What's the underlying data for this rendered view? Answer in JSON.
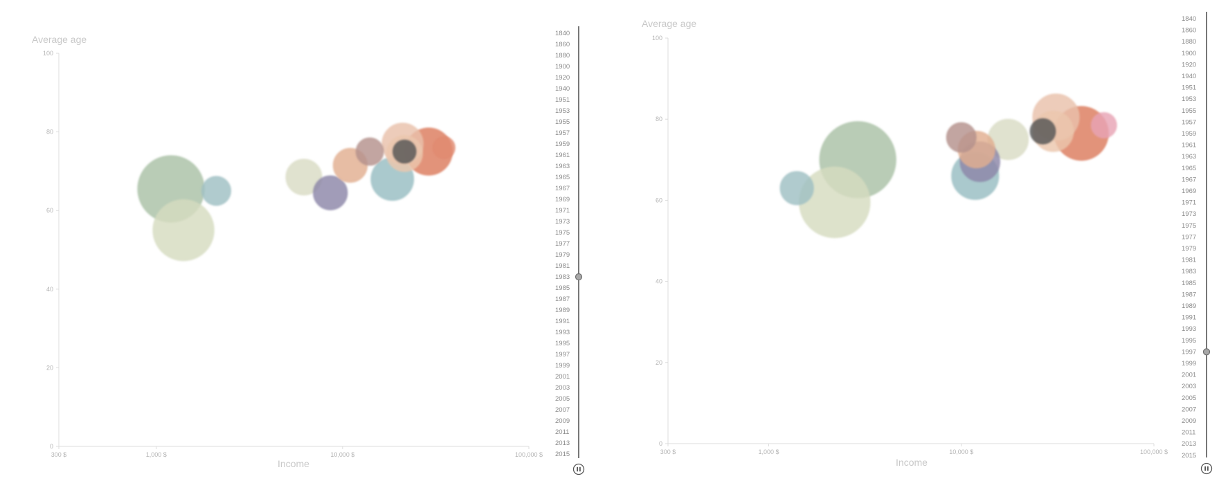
{
  "colors": {
    "axis": "#dcdcdc",
    "axis_title": "#c8c8c8",
    "tick": "#b4b4b4",
    "slider": "#555555"
  },
  "years": [
    "1840",
    "1860",
    "1880",
    "1900",
    "1920",
    "1940",
    "1951",
    "1953",
    "1955",
    "1957",
    "1959",
    "1961",
    "1963",
    "1965",
    "1967",
    "1969",
    "1971",
    "1973",
    "1975",
    "1977",
    "1979",
    "1981",
    "1983",
    "1985",
    "1987",
    "1989",
    "1991",
    "1993",
    "1995",
    "1997",
    "1999",
    "2001",
    "2003",
    "2005",
    "2007",
    "2009",
    "2011",
    "2013",
    "2015"
  ],
  "controls": {
    "pause_icon": "pause-icon",
    "slider_icon": "slider-handle"
  },
  "chart_data": [
    {
      "type": "scatter",
      "subtype": "bubble",
      "title": "",
      "xlabel": "Income",
      "ylabel": "Average age",
      "x_scale": "log",
      "xlim": [
        300,
        100000
      ],
      "ylim": [
        0,
        100
      ],
      "x_ticks": [
        300,
        1000,
        10000,
        100000
      ],
      "x_tick_labels": [
        "300 $",
        "1,000 $",
        "10,000 $",
        "100,000 $"
      ],
      "y_ticks": [
        0,
        20,
        40,
        60,
        80,
        100
      ],
      "y_tick_labels": [
        "0",
        "20",
        "40",
        "60",
        "80",
        "100"
      ],
      "current_year": "1983",
      "points": [
        {
          "x": 1200,
          "y": 65.5,
          "size": 1.0,
          "color": "#a9c1a6"
        },
        {
          "x": 1400,
          "y": 55,
          "size": 0.84,
          "color": "#d6dcc0"
        },
        {
          "x": 2100,
          "y": 65,
          "size": 0.19,
          "color": "#9fbfc3"
        },
        {
          "x": 6200,
          "y": 68.5,
          "size": 0.29,
          "color": "#d9dcc4"
        },
        {
          "x": 8600,
          "y": 64.5,
          "size": 0.26,
          "color": "#8c86a8"
        },
        {
          "x": 11000,
          "y": 71.5,
          "size": 0.26,
          "color": "#e2ae90"
        },
        {
          "x": 14000,
          "y": 75,
          "size": 0.17,
          "color": "#b4918c"
        },
        {
          "x": 18500,
          "y": 68,
          "size": 0.41,
          "color": "#97bdc2"
        },
        {
          "x": 21000,
          "y": 77,
          "size": 0.38,
          "color": "#e9c1ab"
        },
        {
          "x": 21500,
          "y": 75,
          "size": 0.12,
          "color": "#555555"
        },
        {
          "x": 21500,
          "y": 74.5,
          "size": 0.29,
          "color": "#ecc7ad"
        },
        {
          "x": 29000,
          "y": 75,
          "size": 0.5,
          "color": "#dc7b5d"
        },
        {
          "x": 35000,
          "y": 76,
          "size": 0.11,
          "color": "#e08a70"
        }
      ]
    },
    {
      "type": "scatter",
      "subtype": "bubble",
      "title": "",
      "xlabel": "Income",
      "ylabel": "Average age",
      "x_scale": "log",
      "xlim": [
        300,
        100000
      ],
      "ylim": [
        0,
        100
      ],
      "x_ticks": [
        300,
        1000,
        10000,
        100000
      ],
      "x_tick_labels": [
        "300 $",
        "1,000 $",
        "10,000 $",
        "100,000 $"
      ],
      "y_ticks": [
        0,
        20,
        40,
        60,
        80,
        100
      ],
      "y_tick_labels": [
        "0",
        "20",
        "40",
        "60",
        "80",
        "100"
      ],
      "current_year": "1997",
      "points": [
        {
          "x": 1400,
          "y": 63,
          "size": 0.19,
          "color": "#9fbfc3"
        },
        {
          "x": 2900,
          "y": 70,
          "size": 1.0,
          "color": "#a9c1a6"
        },
        {
          "x": 2200,
          "y": 59.5,
          "size": 0.86,
          "color": "#d6dcc0"
        },
        {
          "x": 10000,
          "y": 75.5,
          "size": 0.15,
          "color": "#b4918c"
        },
        {
          "x": 11800,
          "y": 66,
          "size": 0.38,
          "color": "#97bdc2"
        },
        {
          "x": 12000,
          "y": 72.5,
          "size": 0.23,
          "color": "#e2ae90"
        },
        {
          "x": 12500,
          "y": 69.5,
          "size": 0.27,
          "color": "#8c86a8"
        },
        {
          "x": 17500,
          "y": 75,
          "size": 0.28,
          "color": "#d9dcc4"
        },
        {
          "x": 26500,
          "y": 77,
          "size": 0.11,
          "color": "#555555"
        },
        {
          "x": 31000,
          "y": 80.5,
          "size": 0.37,
          "color": "#e9c1ab"
        },
        {
          "x": 30000,
          "y": 77,
          "size": 0.28,
          "color": "#ecc7ad"
        },
        {
          "x": 42000,
          "y": 76.5,
          "size": 0.5,
          "color": "#dc7b5d"
        },
        {
          "x": 55000,
          "y": 78.5,
          "size": 0.11,
          "color": "#e8a3b4"
        }
      ]
    }
  ]
}
